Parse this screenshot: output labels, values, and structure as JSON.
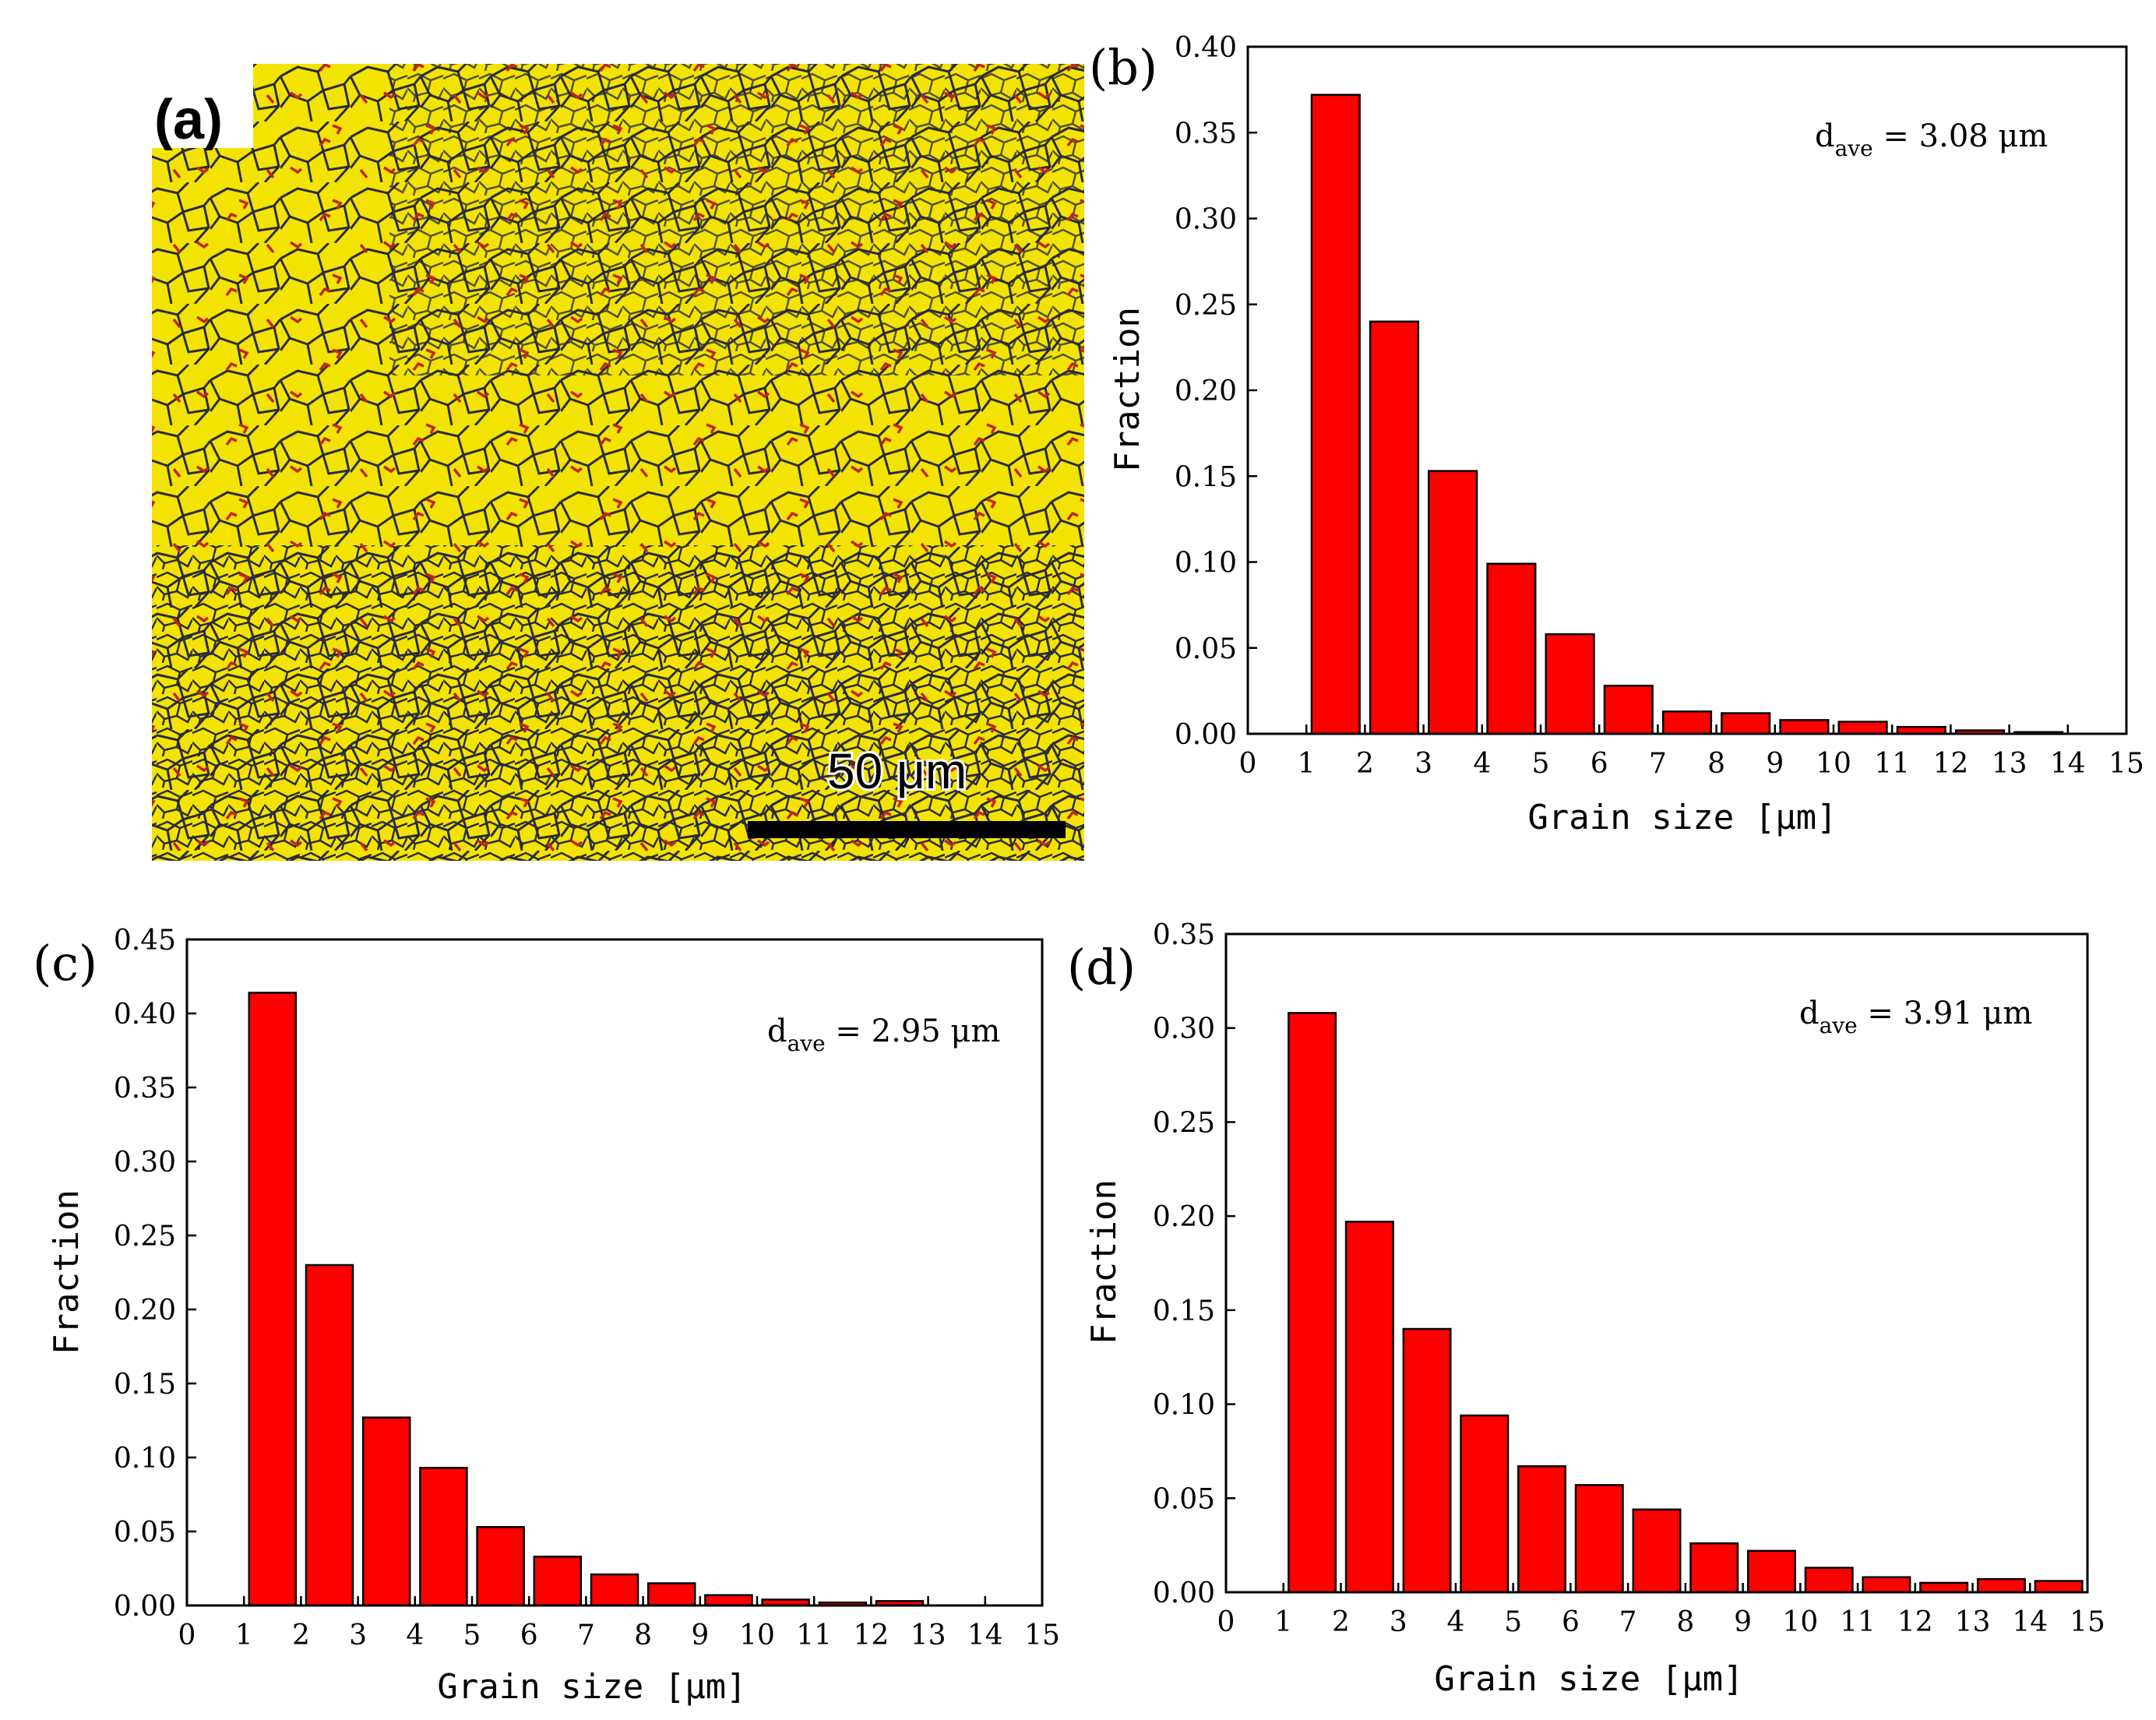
{
  "colors": {
    "bar_fill": "#ff0000",
    "bar_stroke": "#000000",
    "micrograph_base": "#f2e400",
    "grain_boundary": "#2b2b3a",
    "lowangle_boundary": "#c4261c"
  },
  "micrograph": {
    "label": "(a)",
    "scale_bar_label": "50 μm"
  },
  "chart_data": [
    {
      "id": "b",
      "type": "bar",
      "panel_label": "(b)",
      "title": "",
      "xlabel": "Grain size [μm]",
      "ylabel": "Fraction",
      "xlim": [
        0,
        15
      ],
      "ylim": [
        0,
        0.4
      ],
      "xticks": [
        "0",
        "1",
        "2",
        "3",
        "4",
        "5",
        "6",
        "7",
        "8",
        "9",
        "10",
        "11",
        "12",
        "13",
        "14",
        "15"
      ],
      "yticks": [
        "0.00",
        "0.05",
        "0.10",
        "0.15",
        "0.20",
        "0.25",
        "0.30",
        "0.35",
        "0.40"
      ],
      "bar_centers": [
        1.5,
        2.5,
        3.5,
        4.5,
        5.5,
        6.5,
        7.5,
        8.5,
        9.5,
        10.5,
        11.5,
        12.5,
        13.5
      ],
      "values": [
        0.372,
        0.24,
        0.153,
        0.099,
        0.058,
        0.028,
        0.013,
        0.012,
        0.008,
        0.007,
        0.004,
        0.002,
        0.001
      ],
      "annotation": {
        "prefix": "d",
        "subscript": "ave",
        "text": " = 3.08 μm"
      }
    },
    {
      "id": "c",
      "type": "bar",
      "panel_label": "(c)",
      "title": "",
      "xlabel": "Grain size [μm]",
      "ylabel": "Fraction",
      "xlim": [
        0,
        15
      ],
      "ylim": [
        0,
        0.45
      ],
      "xticks": [
        "0",
        "1",
        "2",
        "3",
        "4",
        "5",
        "6",
        "7",
        "8",
        "9",
        "10",
        "11",
        "12",
        "13",
        "14",
        "15"
      ],
      "yticks": [
        "0.00",
        "0.05",
        "0.10",
        "0.15",
        "0.20",
        "0.25",
        "0.30",
        "0.35",
        "0.40",
        "0.45"
      ],
      "bar_centers": [
        1.5,
        2.5,
        3.5,
        4.5,
        5.5,
        6.5,
        7.5,
        8.5,
        9.5,
        10.5,
        11.5,
        12.5
      ],
      "values": [
        0.414,
        0.23,
        0.127,
        0.093,
        0.053,
        0.033,
        0.021,
        0.015,
        0.007,
        0.004,
        0.002,
        0.003
      ],
      "annotation": {
        "prefix": "d",
        "subscript": "ave",
        "text": " = 2.95 μm"
      }
    },
    {
      "id": "d",
      "type": "bar",
      "panel_label": "(d)",
      "title": "",
      "xlabel": "Grain size [μm]",
      "ylabel": "Fraction",
      "xlim": [
        0,
        15
      ],
      "ylim": [
        0,
        0.35
      ],
      "xticks": [
        "0",
        "1",
        "2",
        "3",
        "4",
        "5",
        "6",
        "7",
        "8",
        "9",
        "10",
        "11",
        "12",
        "13",
        "14",
        "15"
      ],
      "yticks": [
        "0.00",
        "0.05",
        "0.10",
        "0.15",
        "0.20",
        "0.25",
        "0.30",
        "0.35"
      ],
      "bar_centers": [
        1.5,
        2.5,
        3.5,
        4.5,
        5.5,
        6.5,
        7.5,
        8.5,
        9.5,
        10.5,
        11.5,
        12.5,
        13.5,
        14.5
      ],
      "values": [
        0.308,
        0.197,
        0.14,
        0.094,
        0.067,
        0.057,
        0.044,
        0.026,
        0.022,
        0.013,
        0.008,
        0.005,
        0.007,
        0.006
      ],
      "annotation": {
        "prefix": "d",
        "subscript": "ave",
        "text": " = 3.91 μm"
      }
    }
  ]
}
